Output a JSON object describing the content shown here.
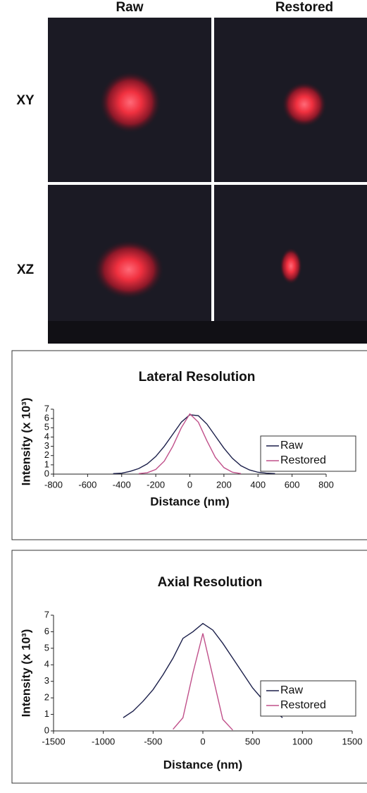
{
  "panel_labels": {
    "columns": [
      "Raw",
      "Restored"
    ],
    "rows": [
      "XY",
      "XZ"
    ]
  },
  "chart_data": [
    {
      "type": "line",
      "title": "Lateral Resolution",
      "x_label": "Distance (nm)",
      "y_label": "Intensity (x 10³)",
      "x": [
        -450,
        -400,
        -350,
        -300,
        -250,
        -200,
        -150,
        -100,
        -50,
        0,
        50,
        100,
        150,
        200,
        250,
        300,
        350,
        400,
        450,
        500
      ],
      "series": [
        {
          "name": "Raw",
          "color": "#1b1f4a",
          "values": [
            0.05,
            0.1,
            0.3,
            0.6,
            1.1,
            1.9,
            3.0,
            4.3,
            5.6,
            6.4,
            6.3,
            5.4,
            4.1,
            2.8,
            1.7,
            0.9,
            0.45,
            0.2,
            0.1,
            0.05
          ]
        },
        {
          "name": "Restored",
          "color": "#c0508a",
          "values": [
            null,
            null,
            null,
            0.05,
            0.15,
            0.5,
            1.4,
            3.0,
            5.0,
            6.5,
            5.6,
            3.6,
            1.8,
            0.7,
            0.2,
            0.05,
            null,
            null,
            null,
            null
          ]
        }
      ],
      "xlim": [
        -800,
        800
      ],
      "xticks": [
        -800,
        -600,
        -400,
        -200,
        0,
        200,
        400,
        600,
        800
      ],
      "ylim": [
        0,
        7
      ],
      "yticks": [
        0,
        1,
        2,
        3,
        4,
        5,
        6,
        7
      ],
      "legend": "right"
    },
    {
      "type": "line",
      "title": "Axial Resolution",
      "x_label": "Distance (nm)",
      "y_label": "Intensity (x 10³)",
      "x": [
        -800,
        -700,
        -600,
        -500,
        -400,
        -300,
        -200,
        -100,
        0,
        100,
        200,
        300,
        400,
        500,
        600,
        700,
        800
      ],
      "series": [
        {
          "name": "Raw",
          "color": "#1b1f4a",
          "values": [
            0.8,
            1.2,
            1.8,
            2.5,
            3.4,
            4.4,
            5.6,
            6.0,
            6.5,
            6.1,
            5.3,
            4.4,
            3.5,
            2.6,
            1.9,
            1.3,
            0.8
          ]
        },
        {
          "name": "Restored",
          "color": "#c0508a",
          "values": [
            null,
            null,
            null,
            null,
            null,
            0.1,
            0.8,
            3.5,
            5.9,
            3.3,
            0.7,
            0.05,
            null,
            null,
            null,
            null,
            null
          ]
        }
      ],
      "xlim": [
        -1500,
        1500
      ],
      "xticks": [
        -1500,
        -1000,
        -500,
        0,
        500,
        1000,
        1500
      ],
      "ylim": [
        0,
        7
      ],
      "yticks": [
        0,
        1,
        2,
        3,
        4,
        5,
        6,
        7
      ],
      "legend": "right"
    }
  ]
}
